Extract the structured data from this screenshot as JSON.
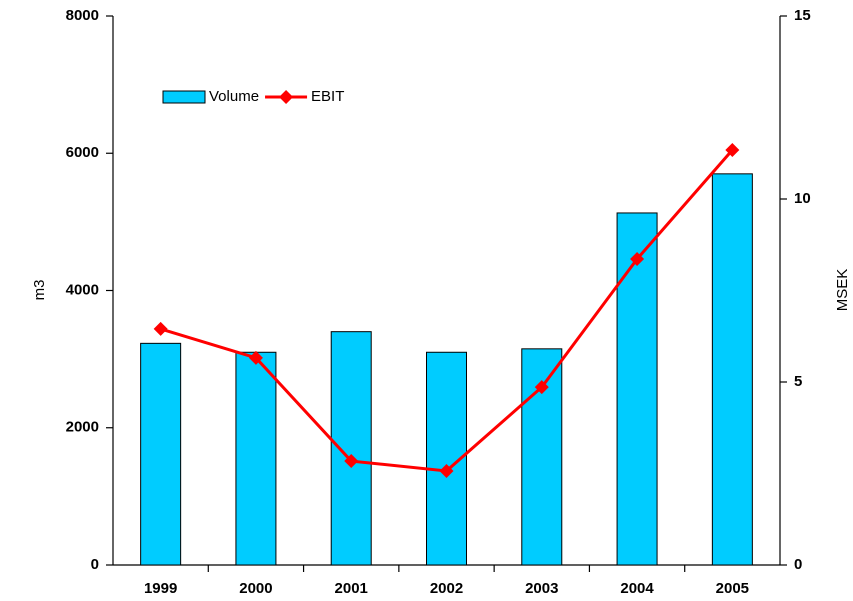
{
  "chart_data": {
    "type": "bar_line",
    "categories": [
      "1999",
      "2000",
      "2001",
      "2002",
      "2003",
      "2004",
      "2005"
    ],
    "y_label": "m3",
    "y2_label": "MSEK",
    "ylim": [
      0,
      8000
    ],
    "yticks": [
      0,
      2000,
      4000,
      6000,
      8000
    ],
    "y2lim": [
      0,
      15
    ],
    "y2ticks": [
      0,
      5,
      10,
      15
    ],
    "legend": "upper left",
    "series": [
      {
        "name": "Volume",
        "type": "bar",
        "color": "#00ccff",
        "values": [
          3230,
          3100,
          3400,
          3100,
          3150,
          5130,
          5700
        ]
      },
      {
        "name": "EBIT",
        "type": "line",
        "color": "#ff0000",
        "axis": "y2",
        "values": [
          6.45,
          5.66,
          2.84,
          2.57,
          4.86,
          8.36,
          11.34
        ]
      }
    ]
  }
}
